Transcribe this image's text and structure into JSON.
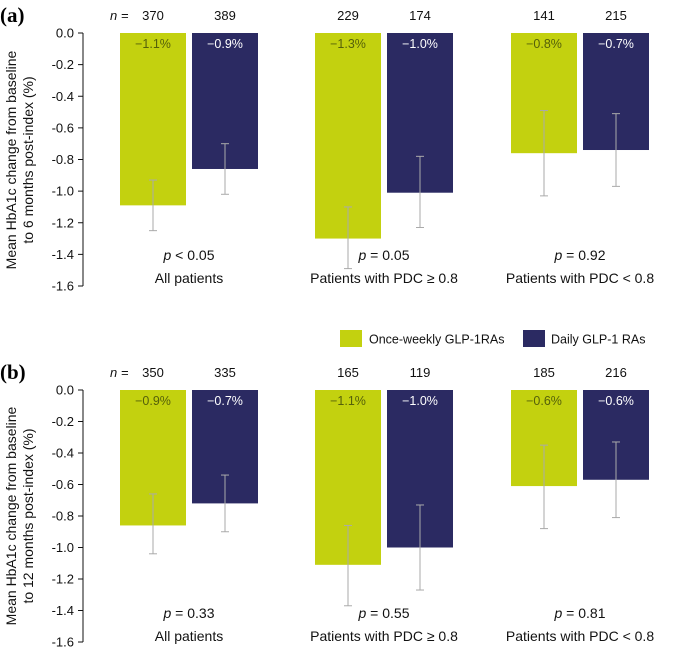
{
  "legend": {
    "once_weekly": "Once-weekly GLP-1RAs",
    "daily": "Daily GLP-1 RAs"
  },
  "colors": {
    "once_weekly": "#c3d10f",
    "daily": "#2b2a62",
    "error_bar": "#aaaaaa",
    "pct_on_once_weekly": "#55600a",
    "pct_on_daily": "#ffffff"
  },
  "chart_data": [
    {
      "type": "bar",
      "panel_label": "(a)",
      "ylabel_line1": "Mean HbA1c change from baseline",
      "ylabel_line2": "to 6 months post-index (%)",
      "ylim": [
        -1.6,
        0.0
      ],
      "yticks": [
        0.0,
        -0.2,
        -0.4,
        -0.6,
        -0.8,
        -1.0,
        -1.2,
        -1.4,
        -1.6
      ],
      "ytick_labels": [
        "0.0",
        "-0.2",
        "-0.4",
        "-0.6",
        "-0.8",
        "-1.0",
        "-1.2",
        "-1.4",
        "-1.6"
      ],
      "n_prefix": "n =",
      "categories": [
        "All patients",
        "Patients with PDC ≥ 0.8",
        "Patients with PDC < 0.8"
      ],
      "p_value_prefix": "p",
      "p_values": [
        "< 0.05",
        "= 0.05",
        "= 0.92"
      ],
      "series": [
        {
          "name": "Once-weekly GLP-1RAs",
          "values": [
            -1.09,
            -1.3,
            -0.76
          ],
          "error_low": [
            -1.25,
            -1.49,
            -1.03
          ],
          "error_high": [
            -0.93,
            -1.1,
            -0.49
          ],
          "n": [
            "370",
            "229",
            "141"
          ],
          "pct_labels": [
            "−1.1%",
            "−1.3%",
            "−0.8%"
          ]
        },
        {
          "name": "Daily GLP-1 RAs",
          "values": [
            -0.86,
            -1.01,
            -0.74
          ],
          "error_low": [
            -1.02,
            -1.23,
            -0.97
          ],
          "error_high": [
            -0.7,
            -0.78,
            -0.51
          ],
          "n": [
            "389",
            "174",
            "215"
          ],
          "pct_labels": [
            "−0.9%",
            "−1.0%",
            "−0.7%"
          ]
        }
      ]
    },
    {
      "type": "bar",
      "panel_label": "(b)",
      "ylabel_line1": "Mean HbA1c change from baseline",
      "ylabel_line2": "to 12 months post-index (%)",
      "ylim": [
        -1.6,
        0.0
      ],
      "yticks": [
        0.0,
        -0.2,
        -0.4,
        -0.6,
        -0.8,
        -1.0,
        -1.2,
        -1.4,
        -1.6
      ],
      "ytick_labels": [
        "0.0",
        "-0.2",
        "-0.4",
        "-0.6",
        "-0.8",
        "-1.0",
        "-1.2",
        "-1.4",
        "-1.6"
      ],
      "n_prefix": "n =",
      "categories": [
        "All patients",
        "Patients with PDC ≥ 0.8",
        "Patients with PDC < 0.8"
      ],
      "p_value_prefix": "p",
      "p_values": [
        "= 0.33",
        "= 0.55",
        "= 0.81"
      ],
      "series": [
        {
          "name": "Once-weekly GLP-1RAs",
          "values": [
            -0.86,
            -1.11,
            -0.61
          ],
          "error_low": [
            -1.04,
            -1.37,
            -0.88
          ],
          "error_high": [
            -0.66,
            -0.86,
            -0.35
          ],
          "n": [
            "350",
            "165",
            "185"
          ],
          "pct_labels": [
            "−0.9%",
            "−1.1%",
            "−0.6%"
          ]
        },
        {
          "name": "Daily GLP-1 RAs",
          "values": [
            -0.72,
            -1.0,
            -0.57
          ],
          "error_low": [
            -0.9,
            -1.27,
            -0.81
          ],
          "error_high": [
            -0.54,
            -0.73,
            -0.33
          ],
          "n": [
            "335",
            "119",
            "216"
          ],
          "pct_labels": [
            "−0.7%",
            "−1.0%",
            "−0.6%"
          ]
        }
      ]
    }
  ]
}
